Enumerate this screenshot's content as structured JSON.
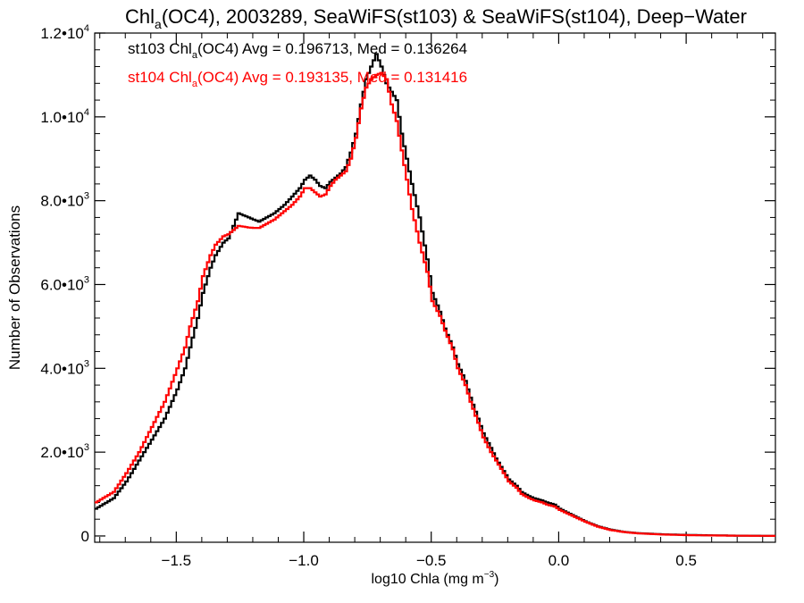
{
  "chart_data": {
    "type": "line",
    "title_main": "Chl",
    "title_sub": "a",
    "title_rest": "(OC4), 2003289, SeaWiFS(st103) & SeaWiFS(st104), Deep−Water",
    "xlabel_main": "log10 Chla (mg m",
    "xlabel_sup": "−3",
    "xlabel_end": ")",
    "ylabel": "Number of Observations",
    "xlim": [
      -1.82,
      0.85
    ],
    "ylim": [
      -150,
      12000
    ],
    "grid": false,
    "x_ticks": [
      {
        "value": -1.5,
        "label": "−1.5"
      },
      {
        "value": -1.0,
        "label": "−1.0"
      },
      {
        "value": -0.5,
        "label": "−0.5"
      },
      {
        "value": 0.0,
        "label": "0.0"
      },
      {
        "value": 0.5,
        "label": "0.5"
      }
    ],
    "y_ticks": [
      {
        "value": 0,
        "mant": "0",
        "exp": ""
      },
      {
        "value": 2000,
        "mant": "2.0•10",
        "exp": "3"
      },
      {
        "value": 4000,
        "mant": "4.0•10",
        "exp": "3"
      },
      {
        "value": 6000,
        "mant": "6.0•10",
        "exp": "3"
      },
      {
        "value": 8000,
        "mant": "8.0•10",
        "exp": "3"
      },
      {
        "value": 10000,
        "mant": "1.0•10",
        "exp": "4"
      },
      {
        "value": 12000,
        "mant": "1.2•10",
        "exp": "4"
      }
    ],
    "annotations": [
      {
        "color": "#000000",
        "pre": "st103 Chl",
        "sub": "a",
        "post": "(OC4) Avg = 0.196713, Med = 0.136264"
      },
      {
        "color": "#ff0000",
        "pre": "st104 Chl",
        "sub": "a",
        "post": "(OC4) Avg = 0.193135, Med = 0.131416"
      }
    ],
    "series": [
      {
        "name": "st103",
        "color": "#000000",
        "points": [
          [
            -1.82,
            650
          ],
          [
            -1.75,
            900
          ],
          [
            -1.7,
            1300
          ],
          [
            -1.65,
            1800
          ],
          [
            -1.6,
            2300
          ],
          [
            -1.55,
            2800
          ],
          [
            -1.5,
            3500
          ],
          [
            -1.47,
            4000
          ],
          [
            -1.45,
            4500
          ],
          [
            -1.42,
            5200
          ],
          [
            -1.4,
            5800
          ],
          [
            -1.37,
            6400
          ],
          [
            -1.35,
            6700
          ],
          [
            -1.32,
            7000
          ],
          [
            -1.3,
            7100
          ],
          [
            -1.28,
            7400
          ],
          [
            -1.26,
            7700
          ],
          [
            -1.24,
            7650
          ],
          [
            -1.22,
            7600
          ],
          [
            -1.2,
            7550
          ],
          [
            -1.18,
            7500
          ],
          [
            -1.15,
            7600
          ],
          [
            -1.12,
            7700
          ],
          [
            -1.08,
            7900
          ],
          [
            -1.05,
            8100
          ],
          [
            -1.02,
            8300
          ],
          [
            -1.0,
            8500
          ],
          [
            -0.98,
            8600
          ],
          [
            -0.96,
            8500
          ],
          [
            -0.94,
            8350
          ],
          [
            -0.92,
            8300
          ],
          [
            -0.9,
            8450
          ],
          [
            -0.88,
            8550
          ],
          [
            -0.86,
            8650
          ],
          [
            -0.84,
            8800
          ],
          [
            -0.82,
            9150
          ],
          [
            -0.8,
            9600
          ],
          [
            -0.78,
            10300
          ],
          [
            -0.76,
            10900
          ],
          [
            -0.74,
            11200
          ],
          [
            -0.72,
            11500
          ],
          [
            -0.7,
            11200
          ],
          [
            -0.68,
            10800
          ],
          [
            -0.66,
            10600
          ],
          [
            -0.64,
            10400
          ],
          [
            -0.62,
            9600
          ],
          [
            -0.6,
            9000
          ],
          [
            -0.58,
            8400
          ],
          [
            -0.55,
            7600
          ],
          [
            -0.52,
            6600
          ],
          [
            -0.5,
            5800
          ],
          [
            -0.47,
            5350
          ],
          [
            -0.45,
            4950
          ],
          [
            -0.42,
            4500
          ],
          [
            -0.4,
            4100
          ],
          [
            -0.37,
            3700
          ],
          [
            -0.35,
            3300
          ],
          [
            -0.32,
            2800
          ],
          [
            -0.3,
            2450
          ],
          [
            -0.27,
            2100
          ],
          [
            -0.25,
            1850
          ],
          [
            -0.22,
            1550
          ],
          [
            -0.2,
            1350
          ],
          [
            -0.17,
            1200
          ],
          [
            -0.15,
            1050
          ],
          [
            -0.12,
            950
          ],
          [
            -0.1,
            900
          ],
          [
            -0.07,
            850
          ],
          [
            -0.05,
            800
          ],
          [
            -0.02,
            750
          ],
          [
            0.0,
            650
          ],
          [
            0.05,
            500
          ],
          [
            0.1,
            350
          ],
          [
            0.15,
            230
          ],
          [
            0.2,
            150
          ],
          [
            0.25,
            100
          ],
          [
            0.3,
            70
          ],
          [
            0.4,
            40
          ],
          [
            0.5,
            25
          ],
          [
            0.6,
            15
          ],
          [
            0.7,
            8
          ],
          [
            0.8,
            4
          ],
          [
            0.85,
            3
          ]
        ]
      },
      {
        "name": "st104",
        "color": "#ff0000",
        "points": [
          [
            -1.82,
            800
          ],
          [
            -1.75,
            1050
          ],
          [
            -1.7,
            1500
          ],
          [
            -1.65,
            2000
          ],
          [
            -1.6,
            2600
          ],
          [
            -1.55,
            3200
          ],
          [
            -1.5,
            4000
          ],
          [
            -1.47,
            4500
          ],
          [
            -1.45,
            5000
          ],
          [
            -1.42,
            5600
          ],
          [
            -1.4,
            6200
          ],
          [
            -1.37,
            6700
          ],
          [
            -1.35,
            6950
          ],
          [
            -1.32,
            7150
          ],
          [
            -1.3,
            7200
          ],
          [
            -1.28,
            7300
          ],
          [
            -1.26,
            7400
          ],
          [
            -1.24,
            7380
          ],
          [
            -1.22,
            7360
          ],
          [
            -1.2,
            7350
          ],
          [
            -1.18,
            7350
          ],
          [
            -1.15,
            7450
          ],
          [
            -1.12,
            7550
          ],
          [
            -1.08,
            7750
          ],
          [
            -1.05,
            7900
          ],
          [
            -1.02,
            8100
          ],
          [
            -1.0,
            8300
          ],
          [
            -0.98,
            8300
          ],
          [
            -0.96,
            8200
          ],
          [
            -0.94,
            8100
          ],
          [
            -0.92,
            8150
          ],
          [
            -0.9,
            8350
          ],
          [
            -0.88,
            8500
          ],
          [
            -0.86,
            8600
          ],
          [
            -0.84,
            8700
          ],
          [
            -0.82,
            9000
          ],
          [
            -0.8,
            9500
          ],
          [
            -0.78,
            10200
          ],
          [
            -0.76,
            10700
          ],
          [
            -0.74,
            10900
          ],
          [
            -0.72,
            11000
          ],
          [
            -0.7,
            11050
          ],
          [
            -0.68,
            10900
          ],
          [
            -0.66,
            10300
          ],
          [
            -0.64,
            9900
          ],
          [
            -0.62,
            9200
          ],
          [
            -0.6,
            8500
          ],
          [
            -0.58,
            7800
          ],
          [
            -0.55,
            7000
          ],
          [
            -0.52,
            6300
          ],
          [
            -0.5,
            5600
          ],
          [
            -0.47,
            5250
          ],
          [
            -0.45,
            4900
          ],
          [
            -0.42,
            4450
          ],
          [
            -0.4,
            4000
          ],
          [
            -0.37,
            3600
          ],
          [
            -0.35,
            3200
          ],
          [
            -0.32,
            2700
          ],
          [
            -0.3,
            2350
          ],
          [
            -0.27,
            2000
          ],
          [
            -0.25,
            1800
          ],
          [
            -0.22,
            1500
          ],
          [
            -0.2,
            1300
          ],
          [
            -0.17,
            1150
          ],
          [
            -0.15,
            1000
          ],
          [
            -0.12,
            900
          ],
          [
            -0.1,
            850
          ],
          [
            -0.07,
            800
          ],
          [
            -0.05,
            750
          ],
          [
            -0.02,
            700
          ],
          [
            0.0,
            620
          ],
          [
            0.05,
            480
          ],
          [
            0.1,
            340
          ],
          [
            0.15,
            220
          ],
          [
            0.2,
            140
          ],
          [
            0.25,
            95
          ],
          [
            0.3,
            65
          ],
          [
            0.4,
            35
          ],
          [
            0.5,
            20
          ],
          [
            0.6,
            12
          ],
          [
            0.7,
            6
          ],
          [
            0.8,
            3
          ],
          [
            0.85,
            2
          ]
        ]
      }
    ]
  }
}
